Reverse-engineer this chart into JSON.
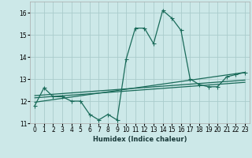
{
  "xlabel": "Humidex (Indice chaleur)",
  "background_color": "#cce8e8",
  "grid_color": "#aacccc",
  "line_color": "#1a6b5a",
  "xlim": [
    -0.5,
    23.5
  ],
  "ylim": [
    11,
    16.5
  ],
  "yticks": [
    11,
    12,
    13,
    14,
    15,
    16
  ],
  "xtick_labels": [
    "0",
    "1",
    "2",
    "3",
    "4",
    "5",
    "6",
    "7",
    "8",
    "9",
    "10",
    "11",
    "12",
    "13",
    "14",
    "15",
    "16",
    "17",
    "18",
    "19",
    "20",
    "21",
    "22",
    "23"
  ],
  "series1": {
    "x": [
      0,
      1,
      2,
      3,
      4,
      5,
      6,
      7,
      8,
      9,
      10,
      11,
      12,
      13,
      14,
      15,
      16,
      17,
      18,
      19,
      20,
      21,
      22,
      23
    ],
    "y": [
      11.8,
      12.6,
      12.2,
      12.2,
      12.0,
      12.0,
      11.4,
      11.15,
      11.4,
      11.15,
      13.9,
      15.3,
      15.3,
      14.6,
      16.1,
      15.75,
      15.2,
      13.0,
      12.75,
      12.65,
      12.65,
      13.1,
      13.2,
      13.3
    ]
  },
  "series2": {
    "x": [
      0,
      23
    ],
    "y": [
      11.95,
      13.3
    ]
  },
  "series3": {
    "x": [
      0,
      23
    ],
    "y": [
      12.15,
      12.85
    ]
  },
  "series4": {
    "x": [
      0,
      23
    ],
    "y": [
      12.25,
      12.95
    ]
  }
}
